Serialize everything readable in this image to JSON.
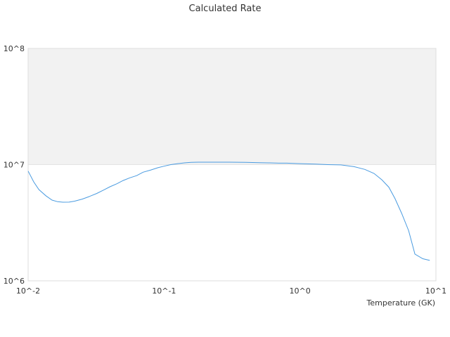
{
  "chart_data": {
    "type": "line",
    "title": "Calculated Rate",
    "xlabel": "Temperature (GK)",
    "ylabel": "",
    "x_scale": "log",
    "y_scale": "log",
    "xlim": [
      0.01,
      10
    ],
    "ylim": [
      1000000,
      100000000
    ],
    "x_ticks": [
      {
        "value": 0.01,
        "label": "10^-2"
      },
      {
        "value": 0.1,
        "label": "10^-1"
      },
      {
        "value": 1,
        "label": "10^0"
      },
      {
        "value": 10,
        "label": "10^1"
      }
    ],
    "y_ticks": [
      {
        "value": 1000000,
        "label": "10^6"
      },
      {
        "value": 10000000,
        "label": "10^7"
      },
      {
        "value": 100000000,
        "label": "10^8"
      }
    ],
    "shaded_band": {
      "from": 10000000,
      "to": 100000000,
      "color": "#f2f2f2"
    },
    "grid": true,
    "legend": "none",
    "series": [
      {
        "color": "#4a9be0",
        "x": [
          0.01,
          0.011,
          0.012,
          0.0135,
          0.015,
          0.0165,
          0.018,
          0.02,
          0.022,
          0.025,
          0.028,
          0.032,
          0.036,
          0.04,
          0.045,
          0.05,
          0.056,
          0.063,
          0.07,
          0.08,
          0.09,
          0.1,
          0.112,
          0.126,
          0.141,
          0.158,
          0.178,
          0.2,
          0.25,
          0.3,
          0.4,
          0.5,
          0.6,
          0.7,
          0.8,
          1.0,
          1.3,
          1.6,
          2.0,
          2.5,
          3.0,
          3.5,
          4.0,
          4.5,
          5.0,
          5.6,
          6.3,
          7.0,
          8.0,
          9.0
        ],
        "y": [
          8800000,
          7100000,
          6100000,
          5400000,
          4950000,
          4800000,
          4750000,
          4760000,
          4850000,
          5050000,
          5300000,
          5650000,
          6050000,
          6450000,
          6850000,
          7300000,
          7700000,
          8050000,
          8600000,
          9000000,
          9400000,
          9700000,
          10000000,
          10200000,
          10350000,
          10450000,
          10500000,
          10500000,
          10500000,
          10500000,
          10450000,
          10400000,
          10350000,
          10300000,
          10300000,
          10200000,
          10100000,
          10000000,
          9950000,
          9600000,
          9100000,
          8400000,
          7400000,
          6400000,
          5100000,
          3800000,
          2700000,
          1700000,
          1550000,
          1500000
        ]
      }
    ]
  }
}
